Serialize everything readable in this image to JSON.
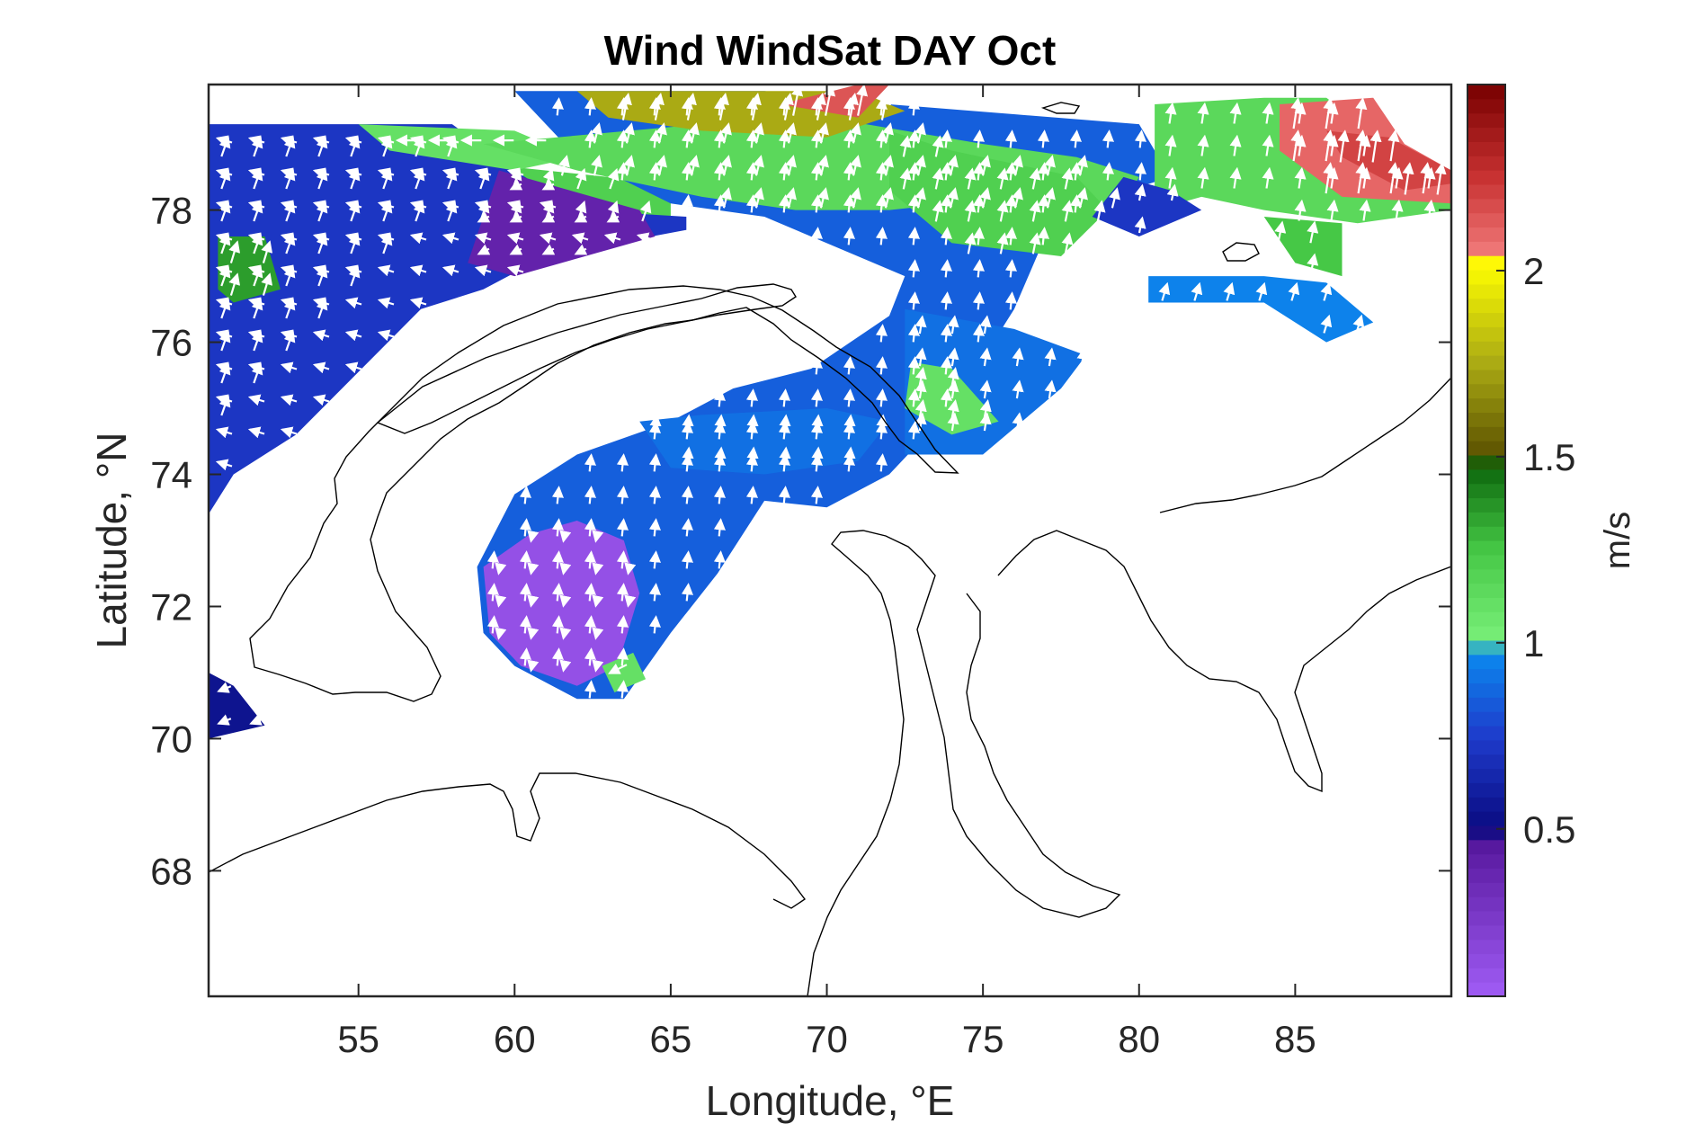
{
  "chart_data": {
    "type": "heatmap",
    "title": "Wind WindSat DAY Oct",
    "xlabel": "Longitude, °E",
    "ylabel": "Latitude, °N",
    "xlim": [
      50.2,
      90
    ],
    "ylim": [
      66.1,
      79.9
    ],
    "xticks": [
      55,
      60,
      65,
      70,
      75,
      80,
      85
    ],
    "yticks": [
      68,
      70,
      72,
      74,
      76,
      78
    ],
    "colorbar": {
      "label": "m/s",
      "range": [
        0.05,
        2.5
      ],
      "ticks": [
        0.5,
        1,
        1.5,
        2
      ],
      "stops": [
        {
          "v": 0.05,
          "c": "#a05cf5"
        },
        {
          "v": 0.45,
          "c": "#5a1aa0"
        },
        {
          "v": 0.5,
          "c": "#0a0a80"
        },
        {
          "v": 0.75,
          "c": "#1e3ccc"
        },
        {
          "v": 0.98,
          "c": "#0a8cf0"
        },
        {
          "v": 1.0,
          "c": "#7af07a"
        },
        {
          "v": 1.25,
          "c": "#46c846"
        },
        {
          "v": 1.48,
          "c": "#0a640a"
        },
        {
          "v": 1.5,
          "c": "#5a5000"
        },
        {
          "v": 1.75,
          "c": "#aaaa14"
        },
        {
          "v": 2.02,
          "c": "#ffff00"
        },
        {
          "v": 2.05,
          "c": "#f07878"
        },
        {
          "v": 2.25,
          "c": "#c83232"
        },
        {
          "v": 2.5,
          "c": "#780000"
        }
      ]
    },
    "regions": [
      {
        "poly": [
          [
            50.2,
            79.2
          ],
          [
            57,
            79.2
          ],
          [
            59,
            78.7
          ],
          [
            63,
            78.5
          ],
          [
            65,
            78.3
          ],
          [
            65,
            77.9
          ],
          [
            61,
            77.8
          ],
          [
            57,
            77.6
          ],
          [
            55,
            76.8
          ],
          [
            52,
            75.2
          ],
          [
            50.2,
            74.8
          ]
        ],
        "value": 1.2,
        "arrow_dir": [
          0.35,
          1
        ]
      },
      {
        "poly": [
          [
            50.2,
            79.3
          ],
          [
            58,
            79.3
          ],
          [
            60,
            78.6
          ],
          [
            62,
            78.0
          ],
          [
            65.5,
            77.9
          ],
          [
            65.5,
            77.7
          ],
          [
            61,
            77.3
          ],
          [
            59,
            76.8
          ],
          [
            57,
            76.5
          ],
          [
            53,
            74.6
          ],
          [
            51,
            74.0
          ],
          [
            50.2,
            73.4
          ]
        ],
        "value": 0.72,
        "arrow_dir": [
          -1,
          0.3
        ]
      },
      {
        "poly": [
          [
            59.5,
            78.6
          ],
          [
            64,
            78.0
          ],
          [
            64.5,
            77.6
          ],
          [
            60,
            77.0
          ],
          [
            58.5,
            77.2
          ]
        ],
        "value": 0.4,
        "arrow_dir": [
          -1,
          -0.5
        ]
      },
      {
        "poly": [
          [
            55,
            79.3
          ],
          [
            60,
            79.2
          ],
          [
            62,
            78.8
          ],
          [
            60,
            78.6
          ],
          [
            56,
            78.9
          ]
        ],
        "value": 1.1,
        "arrow_dir": [
          -1,
          0
        ]
      },
      {
        "poly": [
          [
            50.5,
            77.6
          ],
          [
            52,
            77.6
          ],
          [
            52.5,
            76.8
          ],
          [
            51,
            76.6
          ],
          [
            50.5,
            76.8
          ]
        ],
        "value": 1.35,
        "arrow_dir": [
          0.3,
          1
        ]
      },
      {
        "poly": [
          [
            50.2,
            71.0
          ],
          [
            51,
            70.8
          ],
          [
            52,
            70.2
          ],
          [
            50.2,
            70.0
          ]
        ],
        "value": 0.55,
        "arrow_dir": [
          -1,
          -0.4
        ]
      },
      {
        "poly": [
          [
            60,
            79.8
          ],
          [
            68,
            79.8
          ],
          [
            72,
            79.6
          ],
          [
            80,
            79.3
          ],
          [
            81,
            78.5
          ],
          [
            79,
            78.2
          ],
          [
            77,
            77.6
          ],
          [
            76,
            76.5
          ],
          [
            74,
            75.0
          ],
          [
            72,
            74.0
          ],
          [
            70,
            73.5
          ],
          [
            68,
            73.6
          ],
          [
            66.5,
            72.5
          ],
          [
            65,
            71.6
          ],
          [
            63.5,
            70.6
          ],
          [
            62,
            70.6
          ],
          [
            60,
            71.1
          ],
          [
            59,
            71.6
          ],
          [
            58.8,
            72.6
          ],
          [
            60,
            73.7
          ],
          [
            62,
            74.3
          ],
          [
            65,
            74.8
          ],
          [
            67,
            75.3
          ],
          [
            69.5,
            75.6
          ],
          [
            72,
            76.4
          ],
          [
            72.5,
            77.0
          ],
          [
            68,
            77.9
          ],
          [
            65,
            78.1
          ],
          [
            62,
            78.8
          ]
        ],
        "value": 0.85,
        "arrow_dir": [
          0.1,
          1
        ]
      },
      {
        "poly": [
          [
            59,
            79.0
          ],
          [
            66,
            79.3
          ],
          [
            70,
            79.4
          ],
          [
            75,
            79.0
          ],
          [
            78,
            78.8
          ],
          [
            80,
            78.5
          ],
          [
            79.5,
            78.1
          ],
          [
            77,
            78.0
          ],
          [
            74,
            78.1
          ],
          [
            72,
            78.0
          ],
          [
            69,
            78.0
          ],
          [
            66,
            78.2
          ],
          [
            62,
            78.6
          ]
        ],
        "value": 1.15,
        "arrow_dir": [
          0.25,
          1
        ]
      },
      {
        "poly": [
          [
            62,
            79.8
          ],
          [
            71,
            79.8
          ],
          [
            72.5,
            79.5
          ],
          [
            70,
            79.1
          ],
          [
            66,
            79.2
          ],
          [
            63,
            79.4
          ]
        ],
        "value": 1.75,
        "arrow_dir": [
          0.2,
          1
        ]
      },
      {
        "poly": [
          [
            68.5,
            79.6
          ],
          [
            71,
            79.4
          ],
          [
            72,
            79.9
          ],
          [
            71,
            79.9
          ]
        ],
        "value": 2.15,
        "arrow_dir": [
          0.2,
          1
        ]
      },
      {
        "poly": [
          [
            72,
            79.2
          ],
          [
            74,
            78.9
          ],
          [
            78,
            78.5
          ],
          [
            79,
            78.0
          ],
          [
            77.5,
            77.3
          ],
          [
            74,
            77.5
          ],
          [
            72,
            78.3
          ]
        ],
        "value": 1.2,
        "arrow_dir": [
          0.2,
          1
        ]
      },
      {
        "poly": [
          [
            59,
            72.6
          ],
          [
            60.5,
            73.1
          ],
          [
            62,
            73.3
          ],
          [
            63.5,
            73.0
          ],
          [
            64,
            72.2
          ],
          [
            63.3,
            71.1
          ],
          [
            62,
            70.8
          ],
          [
            60.2,
            71.1
          ],
          [
            59.2,
            71.6
          ]
        ],
        "value": 0.12,
        "arrow_dir": [
          -0.2,
          -1
        ]
      },
      {
        "poly": [
          [
            62.8,
            71.1
          ],
          [
            63.8,
            71.3
          ],
          [
            64.2,
            70.9
          ],
          [
            63.2,
            70.7
          ]
        ],
        "value": 1.1,
        "arrow_dir": [
          -1,
          -0.5
        ]
      },
      {
        "poly": [
          [
            64,
            74.8
          ],
          [
            66,
            74.9
          ],
          [
            70,
            75.0
          ],
          [
            72,
            74.8
          ],
          [
            71,
            74.2
          ],
          [
            68,
            74.0
          ],
          [
            65,
            74.1
          ]
        ],
        "value": 0.9,
        "arrow_dir": [
          0.1,
          1
        ]
      },
      {
        "poly": [
          [
            72.5,
            76.5
          ],
          [
            76,
            76.2
          ],
          [
            78.3,
            75.8
          ],
          [
            77.5,
            75.3
          ],
          [
            75,
            74.3
          ],
          [
            72.5,
            74.3
          ]
        ],
        "value": 0.9,
        "arrow_dir": [
          0.15,
          1
        ]
      },
      {
        "poly": [
          [
            72.5,
            75.0
          ],
          [
            74,
            74.6
          ],
          [
            75.5,
            74.8
          ],
          [
            74,
            75.6
          ],
          [
            72.7,
            75.7
          ]
        ],
        "value": 1.1,
        "arrow_dir": [
          0.2,
          1
        ]
      },
      {
        "poly": [
          [
            80.5,
            79.6
          ],
          [
            84,
            79.7
          ],
          [
            86,
            79.7
          ],
          [
            88,
            79.0
          ],
          [
            90,
            78.5
          ],
          [
            90,
            78.0
          ],
          [
            87,
            77.8
          ],
          [
            84,
            78.0
          ],
          [
            82,
            78.2
          ],
          [
            80.5,
            78.0
          ]
        ],
        "value": 1.15,
        "arrow_dir": [
          0.15,
          1
        ]
      },
      {
        "poly": [
          [
            84.5,
            79.6
          ],
          [
            87.5,
            79.7
          ],
          [
            88.5,
            79.0
          ],
          [
            90,
            78.6
          ],
          [
            90,
            78.1
          ],
          [
            86.5,
            78.2
          ],
          [
            84.5,
            78.9
          ]
        ],
        "value": 2.1,
        "arrow_dir": [
          0.15,
          1
        ]
      },
      {
        "poly": [
          [
            86,
            79.2
          ],
          [
            88,
            79.1
          ],
          [
            90,
            78.6
          ],
          [
            90,
            78.4
          ],
          [
            88.5,
            78.3
          ],
          [
            86.5,
            78.8
          ]
        ],
        "value": 2.2,
        "arrow_dir": [
          0.15,
          1
        ]
      },
      {
        "poly": [
          [
            79.5,
            78.5
          ],
          [
            81,
            78.3
          ],
          [
            82,
            78.0
          ],
          [
            80,
            77.6
          ],
          [
            78.5,
            77.9
          ]
        ],
        "value": 0.72,
        "arrow_dir": [
          0.2,
          1
        ]
      },
      {
        "poly": [
          [
            80.3,
            77.0
          ],
          [
            84,
            77.0
          ],
          [
            86,
            76.9
          ],
          [
            87.5,
            76.3
          ],
          [
            86,
            76.0
          ],
          [
            84,
            76.6
          ],
          [
            80.3,
            76.6
          ]
        ],
        "value": 0.95,
        "arrow_dir": [
          0.3,
          1
        ]
      },
      {
        "poly": [
          [
            84,
            77.9
          ],
          [
            86.5,
            77.8
          ],
          [
            86.5,
            77.0
          ],
          [
            85,
            77.2
          ]
        ],
        "value": 1.25,
        "arrow_dir": [
          0.2,
          1
        ]
      }
    ]
  }
}
